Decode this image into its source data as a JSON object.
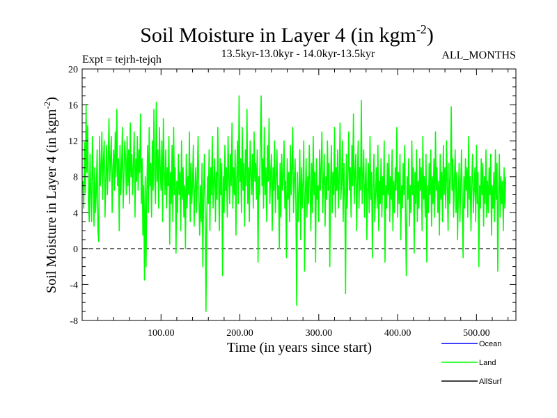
{
  "chart_data": {
    "type": "line",
    "title": "Soil Moisture in Layer 4 (in kgm",
    "title_sup": "-2",
    "title_close": ")",
    "subtitle": "13.5kyr-13.0kyr - 14.0kyr-13.5kyr",
    "expt_label": "Expt = tejrh-tejqh",
    "months_label": "ALL_MONTHS",
    "xlabel": "Time (in years since start)",
    "ylabel": "Soil Moisture in Layer 4 (in kgm",
    "ylabel_sup": "-2",
    "ylabel_close": ")",
    "xlim": [
      0,
      550
    ],
    "ylim": [
      -8,
      20
    ],
    "x_ticks": [
      100,
      200,
      300,
      400,
      500
    ],
    "x_tick_labels": [
      "100.00",
      "200.00",
      "300.00",
      "400.00",
      "500.00"
    ],
    "y_ticks": [
      -8,
      -4,
      0,
      4,
      8,
      12,
      16,
      20
    ],
    "y_tick_labels": [
      "-8",
      "-4",
      "0",
      "4",
      "8",
      "12",
      "16",
      "20"
    ],
    "zero_line": 0,
    "series_style": {
      "Ocean": "#0000ff",
      "Land": "#00ff00",
      "AllSurf": "#000000"
    },
    "legend": [
      {
        "name": "Ocean",
        "color": "#0000ff"
      },
      {
        "name": "Land",
        "color": "#00ff00"
      },
      {
        "name": "AllSurf",
        "color": "#000000"
      }
    ],
    "series": [
      {
        "name": "Land",
        "color": "#00ff00",
        "x_start": 1,
        "x_step": 1,
        "values": [
          7.5,
          4.5,
          11.8,
          6.2,
          16.0,
          8.5,
          13.7,
          5.0,
          3.0,
          10.5,
          6.0,
          3.0,
          12.5,
          8.0,
          2.5,
          9.0,
          4.0,
          6.5,
          11.0,
          2.0,
          0.8,
          12.5,
          7.0,
          9.0,
          13.0,
          5.5,
          10.0,
          12.0,
          3.5,
          8.0,
          11.5,
          6.0,
          9.5,
          14.5,
          7.5,
          10.0,
          12.5,
          4.0,
          9.0,
          11.0,
          6.5,
          13.0,
          8.0,
          15.5,
          7.0,
          10.0,
          2.0,
          11.5,
          6.0,
          9.0,
          13.5,
          4.5,
          8.0,
          12.0,
          10.0,
          6.0,
          12.5,
          7.0,
          11.0,
          5.0,
          14.0,
          8.0,
          10.5,
          6.0,
          9.5,
          13.0,
          3.5,
          10.0,
          7.5,
          12.5,
          6.5,
          11.0,
          8.5,
          15.0,
          5.0,
          10.0,
          1.5,
          7.0,
          -3.5,
          8.0,
          -2.0,
          6.0,
          11.5,
          4.0,
          13.5,
          7.0,
          9.5,
          3.5,
          12.0,
          6.5,
          15.5,
          8.0,
          5.0,
          16.3,
          7.5,
          11.0,
          4.5,
          13.5,
          9.0,
          6.5,
          12.0,
          3.0,
          14.5,
          8.5,
          6.0,
          11.0,
          4.5,
          9.0,
          7.0,
          12.5,
          0.5,
          8.5,
          5.0,
          11.5,
          3.0,
          13.5,
          6.0,
          9.0,
          -0.5,
          7.5,
          4.0,
          10.5,
          6.0,
          8.5,
          2.0,
          12.0,
          5.5,
          9.0,
          3.5,
          7.0,
          0.0,
          10.5,
          4.5,
          8.0,
          6.0,
          13.0,
          3.0,
          9.5,
          5.0,
          7.5,
          11.5,
          2.5,
          6.5,
          9.0,
          4.0,
          8.0,
          12.5,
          5.5,
          1.5,
          7.0,
          3.0,
          9.5,
          -2.0,
          6.0,
          10.5,
          4.0,
          -7.0,
          3.5,
          8.0,
          5.0,
          11.0,
          2.0,
          9.0,
          6.0,
          12.5,
          4.5,
          7.5,
          10.0,
          3.0,
          8.5,
          5.5,
          13.5,
          7.0,
          2.0,
          10.0,
          6.0,
          9.5,
          -3.0,
          8.0,
          4.0,
          11.5,
          6.5,
          9.0,
          3.5,
          12.5,
          8.0,
          5.0,
          10.5,
          7.0,
          14.0,
          4.5,
          9.0,
          6.0,
          11.0,
          1.5,
          8.0,
          12.0,
          5.0,
          17.0,
          7.5,
          10.0,
          4.0,
          13.5,
          6.5,
          9.5,
          2.5,
          11.0,
          7.0,
          15.5,
          5.0,
          9.0,
          3.0,
          12.0,
          8.5,
          6.0,
          10.5,
          4.5,
          13.0,
          7.5,
          9.5,
          5.5,
          11.0,
          -1.5,
          8.0,
          6.0,
          12.5,
          17.0,
          7.0,
          10.0,
          4.5,
          13.5,
          6.0,
          9.0,
          3.0,
          11.5,
          7.5,
          14.5,
          5.0,
          8.5,
          10.5,
          2.0,
          9.0,
          6.5,
          12.0,
          4.0,
          8.0,
          11.0,
          5.5,
          7.0,
          0.0,
          9.5,
          3.5,
          10.5,
          6.5,
          8.0,
          12.0,
          4.5,
          7.5,
          -1.0,
          10.0,
          5.5,
          8.5,
          3.0,
          11.5,
          6.0,
          9.0,
          13.5,
          4.0,
          7.5,
          10.0,
          5.0,
          -6.3,
          8.5,
          3.0,
          6.5,
          11.0,
          1.0,
          9.0,
          4.5,
          7.5,
          12.0,
          -2.5,
          6.0,
          10.0,
          3.5,
          8.0,
          5.0,
          11.5,
          7.0,
          2.0,
          9.5,
          4.0,
          12.5,
          6.0,
          8.5,
          -1.5,
          10.0,
          5.5,
          7.0,
          3.0,
          11.0,
          6.5,
          9.0,
          13.0,
          4.0,
          7.5,
          10.5,
          2.5,
          8.0,
          5.5,
          12.0,
          6.5,
          9.5,
          -2.0,
          7.0,
          11.5,
          4.0,
          8.5,
          6.0,
          13.5,
          3.5,
          9.0,
          6.5,
          11.0,
          4.5,
          8.0,
          14.0,
          5.5,
          7.5,
          12.0,
          3.0,
          9.5,
          6.0,
          -5.0,
          10.5,
          4.5,
          8.0,
          13.0,
          6.5,
          9.0,
          3.5,
          11.5,
          7.0,
          15.0,
          5.0,
          8.5,
          10.5,
          2.0,
          7.5,
          12.0,
          4.5,
          9.0,
          6.5,
          16.5,
          5.0,
          8.0,
          11.0,
          3.5,
          7.0,
          10.0,
          1.0,
          6.5,
          9.5,
          4.0,
          12.5,
          5.5,
          8.5,
          -1.0,
          7.0,
          10.5,
          3.0,
          6.0,
          9.0,
          4.5,
          11.5,
          2.0,
          7.5,
          5.0,
          10.0,
          3.5,
          8.0,
          6.0,
          12.0,
          -1.5,
          7.0,
          4.5,
          9.5,
          6.0,
          10.5,
          3.0,
          8.0,
          5.5,
          11.0,
          2.0,
          7.5,
          4.0,
          9.0,
          6.5,
          13.5,
          3.5,
          8.5,
          5.0,
          10.5,
          1.0,
          7.0,
          4.5,
          9.5,
          6.0,
          11.5,
          3.0,
          -3.0,
          8.0,
          5.5,
          10.0,
          2.5,
          7.0,
          4.0,
          12.0,
          6.0,
          9.0,
          -0.5,
          8.5,
          5.0,
          11.0,
          3.0,
          7.5,
          4.5,
          10.0,
          6.5,
          9.0,
          2.0,
          12.5,
          5.5,
          8.0,
          3.5,
          10.5,
          -1.5,
          7.0,
          4.0,
          9.5,
          6.0,
          11.0,
          2.5,
          8.0,
          5.0,
          10.0,
          3.5,
          13.0,
          6.5,
          9.0,
          4.0,
          7.5,
          1.5,
          10.5,
          5.5,
          8.5,
          3.0,
          11.5,
          6.0,
          9.0,
          4.5,
          12.0,
          7.0,
          2.0,
          9.5,
          5.0,
          8.0,
          15.8,
          6.5,
          10.0,
          3.5,
          7.5,
          11.0,
          4.0,
          8.5,
          1.0,
          6.0,
          9.5,
          3.0,
          7.0,
          11.0,
          5.0,
          -1.0,
          8.0,
          4.5,
          10.0,
          6.5,
          9.0,
          3.5,
          12.5,
          5.5,
          8.0,
          2.0,
          7.5,
          10.5,
          4.0,
          6.5,
          9.0,
          3.0,
          11.5,
          5.0,
          8.5,
          -2.0,
          7.0,
          4.5,
          10.0,
          6.0,
          9.5,
          2.5,
          8.0,
          5.0,
          11.0,
          3.5,
          7.5,
          4.0,
          9.0,
          6.0,
          10.5,
          1.5,
          7.0,
          4.5,
          8.5,
          3.0,
          11.0,
          5.5,
          9.5,
          -2.5,
          6.0,
          10.5,
          3.5,
          8.0,
          5.0,
          7.5,
          2.0,
          9.0,
          4.5,
          8.0
        ]
      }
    ]
  }
}
